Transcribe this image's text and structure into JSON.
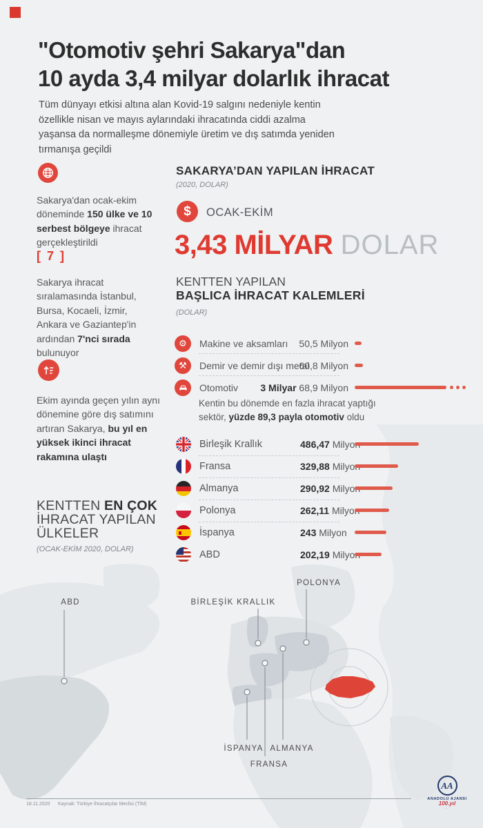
{
  "colors": {
    "accent_red": "#e0463c",
    "bar_red": "#e05a4c",
    "big_red": "#df3a31",
    "dark": "#2d2d2d",
    "navy": "#21386b",
    "map_land": "#e3e7e9",
    "map_highlight": "#cbd1d6",
    "turkey_red": "#df4438"
  },
  "title": {
    "line1": "\"Otomotiv şehri Sakarya\"dan",
    "line2": "10 ayda 3,4 milyar dolarlık ihracat"
  },
  "intro": "Tüm dünyayı etkisi altına alan Kovid-19 salgını nedeniyle kentin özellikle nisan ve mayıs aylarındaki ihracatında ciddi azalma yaşansa da normalleşme dönemiyle üretim ve dış satımda yeniden tırmanışa geçildi",
  "left": {
    "p1": [
      "Sakarya'dan ocak-ekim döneminde ",
      "150 ülke ve 10 serbest bölgeye",
      " ihracat gerçekleştirildi"
    ],
    "rank": "[ 7 ]",
    "p2": [
      "Sakarya ihracat sıralamasında İstanbul, Bursa, Kocaeli, İzmir, Ankara ve Gaziantep'in ardından ",
      "7'nci sırada",
      " bulunuyor"
    ],
    "p3": [
      "Ekim ayında geçen yılın aynı dönemine göre dış satımını artıran Sakarya, ",
      "bu yıl en yüksek ikinci ihracat rakamına ulaştı"
    ],
    "heading": [
      "KENTTEN ",
      "EN ÇOK",
      " İHRACAT YAPILAN ÜLKELER"
    ],
    "heading_sub": "(OCAK-EKİM 2020, DOLAR)"
  },
  "summary": {
    "heading": "SAKARYA’DAN YAPILAN İHRACAT",
    "sub": "(2020, DOLAR)",
    "dollar_sign": "$",
    "period": "OCAK-EKİM",
    "amount": "3,43 MİLYAR",
    "amount_unit": "DOLAR"
  },
  "sectors": {
    "heading1": "KENTTEN YAPILAN",
    "heading2": "BAŞLICA İHRACAT KALEMLERİ",
    "sub": "(DOLAR)",
    "rows": [
      {
        "icon": "gears-icon",
        "glyph": "⚙",
        "label": "Makine ve aksamları",
        "value_bold": "",
        "value": "50,5 Milyon"
      },
      {
        "icon": "hammers-icon",
        "glyph": "⚒",
        "label": "Demir ve demir dışı metal",
        "value_bold": "",
        "value": "60,8 Milyon"
      },
      {
        "icon": "car-icon",
        "glyph": "",
        "label": "Otomotiv",
        "value_bold": "3 Milyar",
        "value": " 68,9 Milyon"
      }
    ],
    "note": [
      "Kentin bu dönemde en fazla ihracat yaptığı sektör, ",
      "yüzde 89,3 payla otomotiv",
      " oldu"
    ]
  },
  "countries": [
    {
      "flag": "flag-uk",
      "name": "Birleşik Krallık",
      "value_bold": "486,47",
      "value": " Milyon"
    },
    {
      "flag": "flag-france",
      "name": "Fransa",
      "value_bold": "329,88",
      "value": " Milyon"
    },
    {
      "flag": "flag-germany",
      "name": "Almanya",
      "value_bold": "290,92",
      "value": " Milyon"
    },
    {
      "flag": "flag-poland",
      "name": "Polonya",
      "value_bold": "262,11",
      "value": " Milyon"
    },
    {
      "flag": "flag-spain",
      "name": "İspanya",
      "value_bold": "243",
      "value": " Milyon"
    },
    {
      "flag": "flag-usa",
      "name": "ABD",
      "value_bold": "202,19",
      "value": " Milyon"
    }
  ],
  "map": {
    "labels": {
      "abd": "ABD",
      "uk": "BİRLEŞİK KRALLIK",
      "poland": "POLONYA",
      "spain": "İSPANYA",
      "france": "FRANSA",
      "germany": "ALMANYA"
    }
  },
  "footer": {
    "date": "18.11.2020",
    "source": "Kaynak: Türkiye İhracatçılar Meclisi (TİM)",
    "agency_initials": "AA",
    "agency_name": "ANADOLU AJANSI",
    "centennial": "100.yıl"
  },
  "chart_data": [
    {
      "type": "bar",
      "orientation": "horizontal",
      "unit": "million USD",
      "title": "Kentten yapılan başlıca ihracat kalemleri (dolar)",
      "categories": [
        "Makine ve aksamları",
        "Demir ve demir dışı metal",
        "Otomotiv"
      ],
      "values": [
        50.5,
        60.8,
        3068.9
      ],
      "value_labels": [
        "50,5 Milyon",
        "60,8 Milyon",
        "3 Milyar 68,9 Milyon"
      ],
      "note": "Otomotiv payı yüzde 89,3 — bar truncated with ellipsis dots"
    },
    {
      "type": "bar",
      "orientation": "horizontal",
      "unit": "million USD",
      "title": "Kentten en çok ihracat yapılan ülkeler (Ocak-Ekim 2020, dolar)",
      "categories": [
        "Birleşik Krallık",
        "Fransa",
        "Almanya",
        "Polonya",
        "İspanya",
        "ABD"
      ],
      "values": [
        486.47,
        329.88,
        290.92,
        262.11,
        243,
        202.19
      ],
      "value_labels": [
        "486,47 Milyon",
        "329,88 Milyon",
        "290,92 Milyon",
        "262,11 Milyon",
        "243 Milyon",
        "202,19 Milyon"
      ]
    },
    {
      "type": "headline",
      "title": "Sakarya’dan yapılan ihracat (2020, dolar)",
      "period": "Ocak-Ekim",
      "total": "3,43 milyar dolar"
    }
  ]
}
